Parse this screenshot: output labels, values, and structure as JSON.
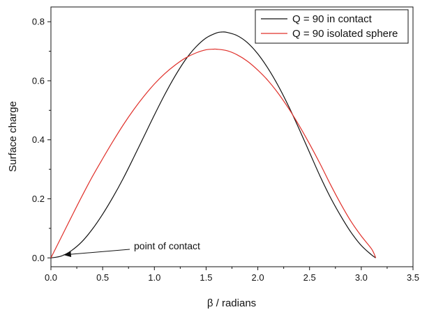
{
  "chart_data": {
    "type": "line",
    "xlabel": "β / radians",
    "ylabel": "Surface charge",
    "xlim": [
      0,
      3.5
    ],
    "ylim": [
      -0.03,
      0.85
    ],
    "x_ticks": [
      "0.0",
      "0.5",
      "1.0",
      "1.5",
      "2.0",
      "2.5",
      "3.0",
      "3.5"
    ],
    "y_ticks": [
      "0.0",
      "0.2",
      "0.4",
      "0.6",
      "0.8"
    ],
    "grid": false,
    "legend_position": "top-right",
    "series": [
      {
        "name": "Q = 90 in contact",
        "color": "#111111",
        "x": [
          0.0,
          0.1,
          0.2,
          0.3,
          0.4,
          0.5,
          0.6,
          0.7,
          0.8,
          0.9,
          1.0,
          1.1,
          1.2,
          1.3,
          1.4,
          1.5,
          1.6,
          1.65,
          1.7,
          1.8,
          1.9,
          2.0,
          2.1,
          2.2,
          2.3,
          2.4,
          2.5,
          2.6,
          2.7,
          2.8,
          2.9,
          3.0,
          3.1,
          3.14
        ],
        "y": [
          0.0,
          0.006,
          0.025,
          0.055,
          0.097,
          0.148,
          0.206,
          0.27,
          0.34,
          0.412,
          0.484,
          0.553,
          0.616,
          0.671,
          0.714,
          0.745,
          0.762,
          0.765,
          0.764,
          0.753,
          0.729,
          0.691,
          0.641,
          0.581,
          0.512,
          0.436,
          0.357,
          0.278,
          0.206,
          0.143,
          0.087,
          0.042,
          0.01,
          0.0
        ]
      },
      {
        "name": "Q = 90 isolated sphere",
        "color": "#e0302a",
        "x": [
          0.0,
          0.1,
          0.2,
          0.3,
          0.4,
          0.5,
          0.6,
          0.7,
          0.8,
          0.9,
          1.0,
          1.1,
          1.2,
          1.3,
          1.4,
          1.5,
          1.57,
          1.6,
          1.7,
          1.8,
          1.9,
          2.0,
          2.1,
          2.2,
          2.3,
          2.4,
          2.5,
          2.6,
          2.7,
          2.8,
          2.9,
          3.0,
          3.1,
          3.14
        ],
        "y": [
          0.0,
          0.07,
          0.14,
          0.209,
          0.275,
          0.336,
          0.395,
          0.451,
          0.502,
          0.548,
          0.589,
          0.624,
          0.653,
          0.677,
          0.694,
          0.705,
          0.707,
          0.707,
          0.702,
          0.688,
          0.666,
          0.636,
          0.6,
          0.556,
          0.505,
          0.448,
          0.386,
          0.32,
          0.25,
          0.184,
          0.124,
          0.074,
          0.03,
          0.0
        ]
      }
    ],
    "annotations": [
      {
        "text": "point of contact",
        "arrow_to": [
          0.12,
          0.01
        ]
      }
    ]
  }
}
